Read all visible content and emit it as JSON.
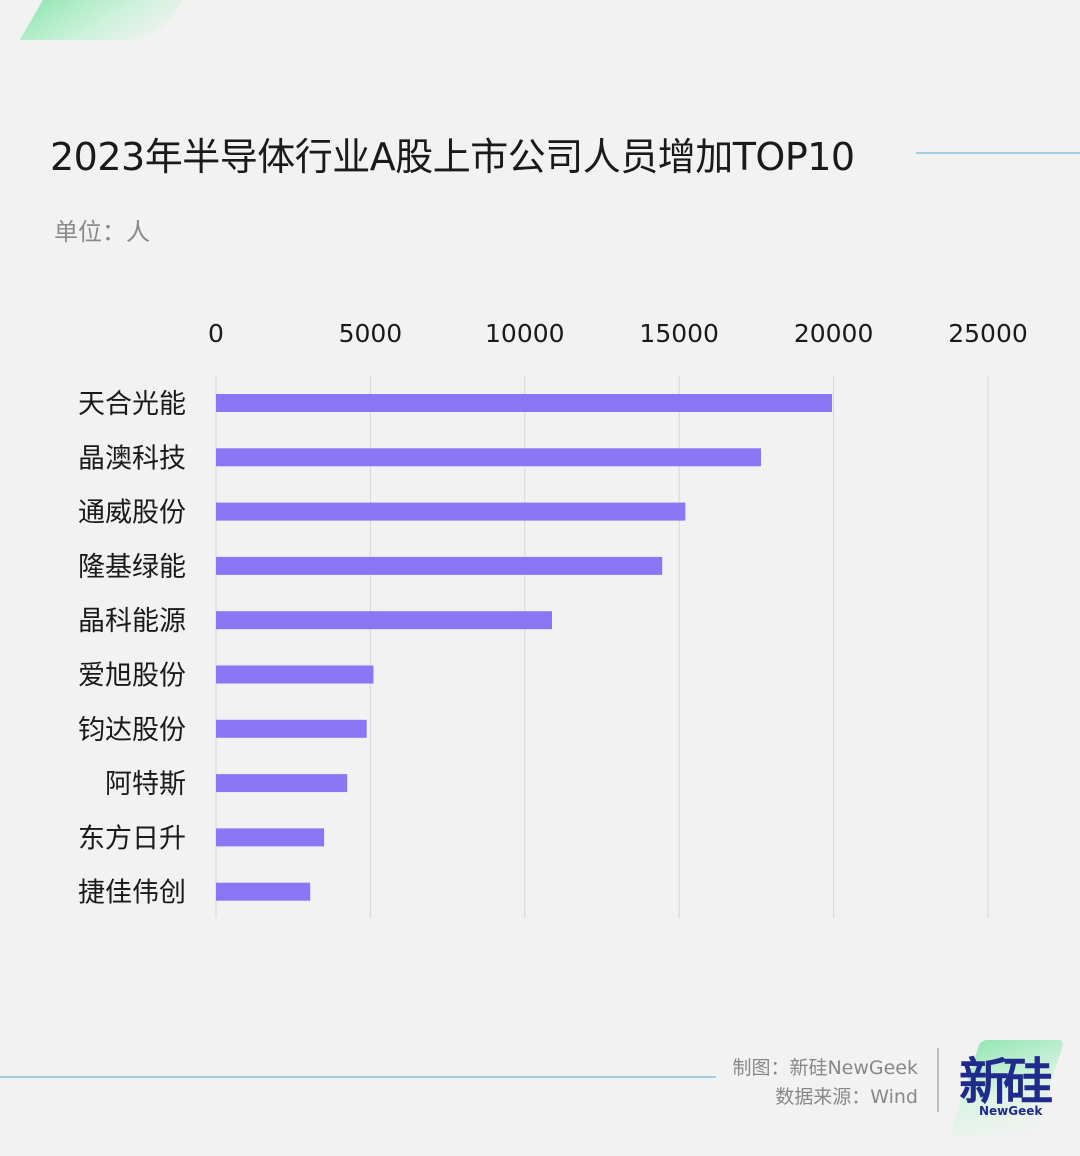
{
  "header": {
    "title": "2023年半导体行业A股上市公司人员增加TOP10",
    "unit": "单位：人"
  },
  "footer": {
    "credit": "制图：新硅NewGeek",
    "source": "数据来源：Wind",
    "logo_text": "新硅",
    "logo_en": "NewGeek"
  },
  "colors": {
    "bar": "#8b77f5",
    "grid": "#d6d6d6",
    "accent_line": "#9ccde2",
    "logo": "#1f2a8a"
  },
  "chart_data": {
    "type": "bar",
    "orientation": "horizontal",
    "categories": [
      "天合光能",
      "晶澳科技",
      "通威股份",
      "隆基绿能",
      "晶科能源",
      "爱旭股份",
      "钧达股份",
      "阿特斯",
      "东方日升",
      "捷佳伟创"
    ],
    "values": [
      19950,
      17650,
      15200,
      14450,
      10880,
      5100,
      4880,
      4250,
      3500,
      3050
    ],
    "xlim": [
      0,
      25000
    ],
    "xticks": [
      "0",
      "5000",
      "10000",
      "15000",
      "20000",
      "25000"
    ],
    "grid": true,
    "axis_position": "top"
  }
}
